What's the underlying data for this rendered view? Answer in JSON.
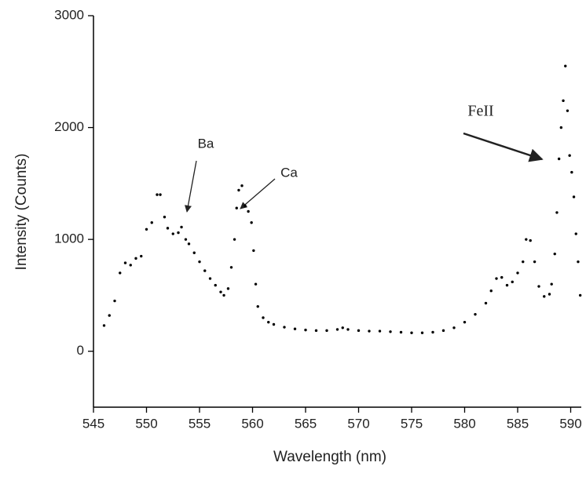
{
  "chart_data": {
    "type": "scatter",
    "x_label": "Wavelength (nm)",
    "y_label": "Intensity (Counts)",
    "xlim": [
      545,
      591
    ],
    "ylim": [
      -500,
      3000
    ],
    "xticks": [
      545,
      550,
      555,
      560,
      565,
      570,
      575,
      580,
      585,
      590
    ],
    "yticks": [
      0,
      1000,
      2000,
      3000
    ],
    "color": "#000000",
    "x": [
      546,
      546.5,
      547,
      547.5,
      548,
      548.5,
      549,
      549.5,
      550,
      550.5,
      551,
      551.3,
      551.7,
      552,
      552.5,
      553,
      553.3,
      553.7,
      554,
      554.5,
      555,
      555.5,
      556,
      556.5,
      557,
      557.3,
      557.7,
      558,
      558.3,
      558.5,
      558.7,
      559,
      559.3,
      559.6,
      559.9,
      560.1,
      560.3,
      560.5,
      561,
      561.5,
      562,
      563,
      564,
      565,
      566,
      567,
      568,
      568.5,
      569,
      570,
      571,
      572,
      573,
      574,
      575,
      576,
      577,
      578,
      579,
      580,
      581,
      582,
      582.5,
      583,
      583.5,
      584,
      584.5,
      585,
      585.5,
      585.8,
      586.2,
      586.6,
      587,
      587.5,
      588,
      588.2,
      588.5,
      588.7,
      588.9,
      589.1,
      589.3,
      589.5,
      589.7,
      589.9,
      590.1,
      590.3,
      590.5,
      590.7,
      590.9
    ],
    "values": [
      230,
      320,
      450,
      700,
      790,
      770,
      830,
      850,
      1090,
      1150,
      1400,
      1400,
      1200,
      1100,
      1050,
      1060,
      1110,
      1000,
      960,
      880,
      800,
      720,
      650,
      590,
      530,
      500,
      560,
      750,
      1000,
      1280,
      1440,
      1480,
      1300,
      1250,
      1150,
      900,
      600,
      400,
      300,
      260,
      240,
      215,
      200,
      190,
      185,
      185,
      195,
      210,
      195,
      185,
      180,
      180,
      175,
      170,
      165,
      165,
      170,
      185,
      210,
      260,
      330,
      430,
      540,
      650,
      660,
      590,
      620,
      700,
      800,
      1000,
      990,
      800,
      580,
      490,
      510,
      600,
      870,
      1240,
      1720,
      2000,
      2240,
      2550,
      2150,
      1750,
      1600,
      1380,
      1050,
      800,
      500
    ],
    "annotations": [
      "Ba",
      "Ca",
      "FeII"
    ]
  }
}
